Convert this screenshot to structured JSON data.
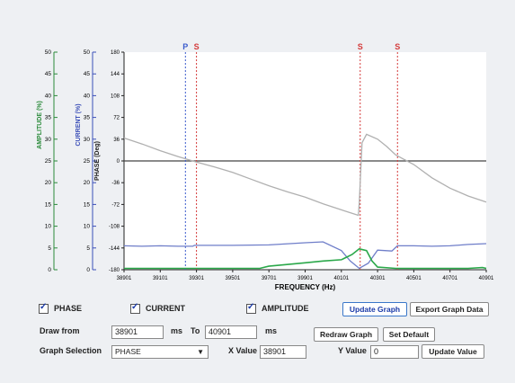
{
  "chart_data": {
    "type": "line",
    "xlabel": "FREQUENCY (Hz)",
    "x_ticks": [
      38901,
      39101,
      39301,
      39501,
      39701,
      39901,
      40101,
      40301,
      40501,
      40701,
      40901
    ],
    "xlim": [
      38901,
      40901
    ],
    "phase_axis": {
      "label": "PHASE (Deg)",
      "ticks": [
        180,
        144,
        108,
        72,
        36,
        0,
        -36,
        -72,
        -108,
        -144,
        -180
      ],
      "ylim": [
        -180,
        180
      ]
    },
    "current_axis": {
      "label": "CURRENT (%)",
      "ticks": [
        50,
        45,
        40,
        35,
        30,
        25,
        20,
        15,
        10,
        5,
        0
      ],
      "ylim": [
        0,
        50
      ]
    },
    "amplitude_axis": {
      "label": "AMPLITUDE (%)",
      "ticks": [
        50,
        45,
        40,
        35,
        30,
        25,
        20,
        15,
        10,
        5,
        0
      ],
      "ylim": [
        0,
        50
      ]
    },
    "markers": [
      {
        "label": "P",
        "x": 39240,
        "color": "#3b5bcc"
      },
      {
        "label": "S",
        "x": 39301,
        "color": "#d43a3a"
      },
      {
        "label": "S",
        "x": 40205,
        "color": "#d43a3a"
      },
      {
        "label": "S",
        "x": 40411,
        "color": "#d43a3a"
      }
    ],
    "series": [
      {
        "axis": "phase",
        "color": "#b0b0b0",
        "x": [
          38901,
          39001,
          39101,
          39201,
          39301,
          39401,
          39501,
          39601,
          39701,
          39801,
          39901,
          40001,
          40101,
          40195,
          40200,
          40215,
          40240,
          40301,
          40351,
          40401,
          40451,
          40501,
          40601,
          40701,
          40801,
          40901
        ],
        "y": [
          38,
          28,
          17,
          7,
          -2,
          -10,
          -19,
          -30,
          -41,
          -51,
          -60,
          -71,
          -81,
          -90,
          -70,
          30,
          44,
          36,
          24,
          10,
          2,
          -6,
          -28,
          -45,
          -58,
          -68
        ]
      },
      {
        "axis": "current",
        "color": "#6f7ec9",
        "x": [
          38901,
          39000,
          39101,
          39201,
          39280,
          39290,
          39501,
          39701,
          39901,
          40000,
          40101,
          40150,
          40200,
          40250,
          40301,
          40340,
          40380,
          40410,
          40501,
          40601,
          40701,
          40801,
          40901
        ],
        "y": [
          5.5,
          5.4,
          5.5,
          5.4,
          5.4,
          5.6,
          5.6,
          5.7,
          6.2,
          6.4,
          4.4,
          2.0,
          0.3,
          1.5,
          4.5,
          4.4,
          4.3,
          5.5,
          5.5,
          5.4,
          5.5,
          5.8,
          6.0
        ]
      },
      {
        "axis": "amplitude",
        "color": "#2ba84a",
        "x": [
          38901,
          39101,
          39301,
          39501,
          39651,
          39700,
          39801,
          39901,
          40001,
          40101,
          40160,
          40200,
          40240,
          40270,
          40301,
          40401,
          40601,
          40801,
          40880,
          40901
        ],
        "y": [
          0.3,
          0.3,
          0.3,
          0.3,
          0.3,
          0.8,
          1.2,
          1.6,
          2.0,
          2.3,
          3.5,
          4.8,
          4.4,
          2.0,
          0.6,
          0.3,
          0.3,
          0.3,
          0.5,
          0.3
        ]
      }
    ],
    "grid": false
  },
  "checkboxes": {
    "phase": "PHASE",
    "current": "CURRENT",
    "amplitude": "AMPLITUDE"
  },
  "buttons": {
    "update_graph": "Update Graph",
    "export_graph_data": "Export Graph Data",
    "redraw_graph": "Redraw Graph",
    "set_default": "Set Default",
    "update_value": "Update Value"
  },
  "draw_from": {
    "label": "Draw from",
    "from_value": "38901",
    "unit1": "ms",
    "to_label": "To",
    "to_value": "40901",
    "unit2": "ms"
  },
  "graph_selection": {
    "label": "Graph Selection",
    "selected": "PHASE",
    "x_label": "X Value",
    "x_value": "38901",
    "y_label": "Y Value",
    "y_value": "0"
  },
  "colors": {
    "phase_axis": "#222222",
    "current_axis": "#3b4fb8",
    "amplitude_axis": "#2a8a3a",
    "marker_p": "#3b5bcc",
    "marker_s": "#d43a3a"
  }
}
